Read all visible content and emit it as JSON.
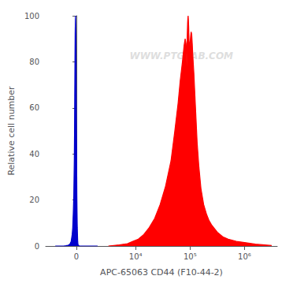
{
  "chart_data": {
    "type": "area",
    "xlabel": "APC-65063 CD44 (F10-44-2)",
    "ylabel": "Relative cell number",
    "annotation": "WWW.PTGLAB.COM",
    "log": "x",
    "grid": false,
    "xlim": [
      -3000,
      4000000
    ],
    "xticks": [
      0,
      {
        "value": 10000,
        "label": "10⁴"
      },
      {
        "value": 100000,
        "label": "10⁵"
      },
      {
        "value": 1000000,
        "label": "10⁶"
      }
    ],
    "ylim": [
      0,
      100
    ],
    "yticks": [
      0,
      20,
      40,
      60,
      80,
      100
    ],
    "series": [
      {
        "color": "#0000cc",
        "x": [
          -2000,
          -1800,
          -1600,
          -1400,
          -1200,
          -1000,
          -900,
          -800,
          -700,
          -600,
          -500,
          -400,
          -350,
          -300,
          -250,
          -200,
          -180,
          -160,
          -140,
          -120,
          -100,
          -80,
          -60,
          -40,
          -20,
          0,
          20,
          40,
          60,
          80,
          100,
          120,
          140,
          160,
          180,
          200,
          250,
          300,
          350,
          400,
          500,
          600,
          700,
          800,
          900,
          1000,
          1200,
          1400,
          1600,
          1800,
          2000
        ],
        "values": [
          0,
          0,
          0,
          0,
          0,
          0.1,
          0.2,
          0.3,
          0.5,
          1,
          2,
          5,
          8,
          14,
          22,
          38,
          50,
          65,
          80,
          92,
          98,
          100,
          92,
          80,
          65,
          50,
          38,
          22,
          14,
          8,
          5,
          2,
          1,
          0.5,
          0.3,
          0.2,
          0.1,
          0,
          0,
          0,
          0,
          0,
          0,
          0,
          0,
          0,
          0,
          0,
          0,
          0,
          0
        ]
      },
      {
        "color": "#ff0000",
        "x": [
          3162.2777,
          5011.8723,
          7079.4578,
          8912.5094,
          11220.185,
          14125.375,
          17782.794,
          22387.211,
          28183.829,
          35481.339,
          44668.359,
          52480.746,
          60255.959,
          66069.345,
          72443.596,
          77624.712,
          81283.052,
          84139.514,
          86099.375,
          87096.359,
          88104.887,
          89125.094,
          90157.114,
          91201.084,
          92257.143,
          93325.43,
          94406.088,
          95499.259,
          97723.722,
          100000,
          102329.3,
          104712.85,
          107151.93,
          109647.82,
          112201.85,
          117489.76,
          123026.88,
          128824.96,
          134896.29,
          144543.98,
          158489.32,
          177827.94,
          199526.23,
          223872.11,
          251188.64,
          316227.77,
          398107.17,
          501187.23,
          707945.78,
          1000000,
          1584893.2,
          3162277.7
        ],
        "values": [
          0,
          0.5,
          1,
          2,
          3,
          5,
          8,
          12,
          18,
          26,
          37,
          50,
          62,
          72,
          80,
          87,
          90,
          88,
          82,
          78,
          88,
          93,
          97,
          99,
          100,
          98,
          95,
          90,
          85,
          88,
          91,
          93,
          92,
          88,
          83,
          75,
          65,
          55,
          45,
          35,
          25,
          18,
          14,
          11,
          9,
          6,
          4,
          3,
          2,
          1.5,
          0.8,
          0.2
        ]
      }
    ]
  }
}
